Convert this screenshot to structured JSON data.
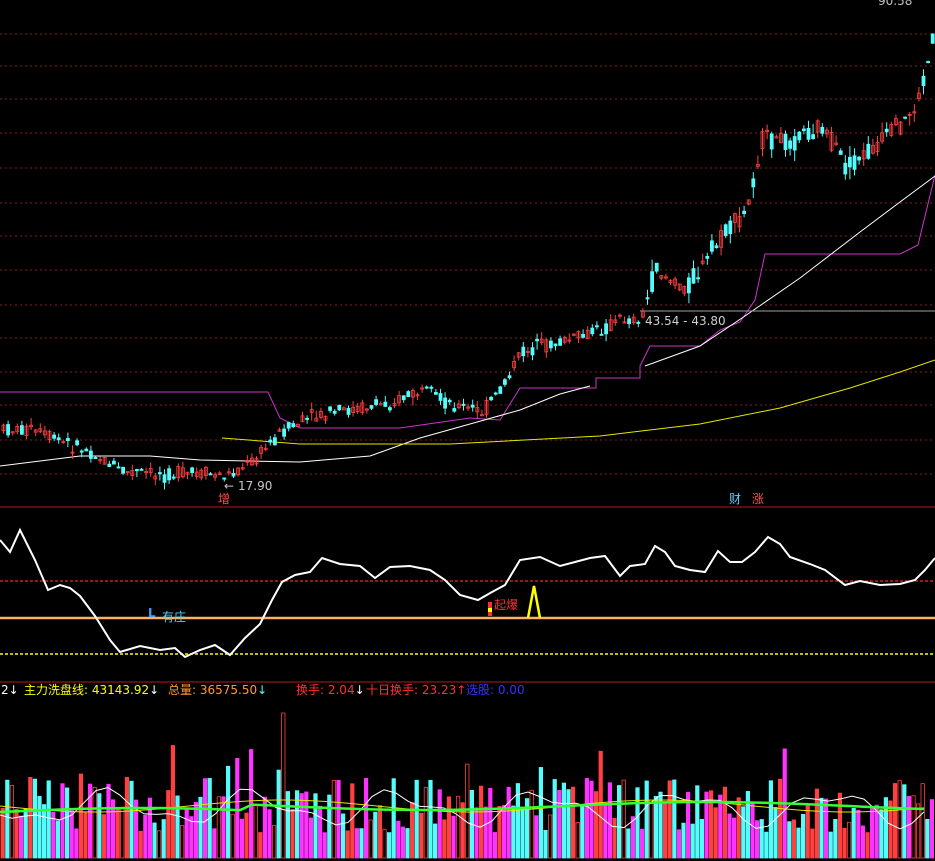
{
  "chart_data": {
    "type": "candlestick",
    "symbol_panels": [
      "price",
      "oscillator",
      "volume"
    ],
    "price": {
      "top_value_label": "90.58",
      "low_annotation": "17.90",
      "range_annotation": "43.54 - 43.80",
      "event_markers": [
        "增",
        "财",
        "涨"
      ],
      "colors": {
        "up": "#ff4040",
        "down": "#54fcfc",
        "upper_band": "#cc33cc",
        "ma_fast": "#ffffff",
        "ma_slow": "#e6e600",
        "grid": "#8b1a1a"
      }
    },
    "oscillator": {
      "signals": [
        "有庄",
        "起爆"
      ],
      "colors": {
        "line": "#ffffff",
        "upper_ref": "#ff2020",
        "mid_ref": "#ffb060",
        "lower_ref": "#ffff00",
        "spike": "#ffff00"
      }
    },
    "volume": {
      "legend_prefix": "2",
      "legend": [
        {
          "label": "主力洗盘线: 43143.92",
          "color": "#ffff00"
        },
        {
          "label": "总量: 36575.50",
          "color": "#ff9933"
        },
        {
          "label": "换手: 2.04",
          "color": "#ff3030"
        },
        {
          "label": "十日换手: 23.23",
          "color": "#ff3030"
        },
        {
          "label": "选股: 0.00",
          "color": "#3333ff"
        }
      ],
      "colors": {
        "up": "#ff4040",
        "down": "#54fcfc",
        "magenta": "#ff33ff",
        "ma_green": "#33ff33",
        "ma_yellow": "#e6e600",
        "ma_white": "#ffffff"
      }
    }
  }
}
